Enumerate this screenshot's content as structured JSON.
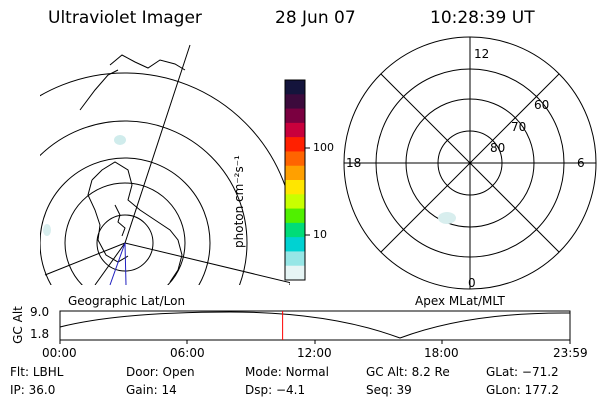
{
  "header": {
    "instrument": "Ultraviolet Imager",
    "date": "28 Jun 07",
    "time": "10:28:39 UT"
  },
  "colorbar": {
    "label": "photon cm⁻²s⁻¹",
    "tick_labels": [
      "100",
      "10"
    ],
    "colors": [
      "#14143c",
      "#3c0a3c",
      "#7a0040",
      "#c8003c",
      "#ff2000",
      "#ff6400",
      "#ffa000",
      "#ffe600",
      "#c8ff00",
      "#50f000",
      "#00dc78",
      "#00d2d2",
      "#96e6e6",
      "#e6f5f5"
    ]
  },
  "left_panel": {
    "label": "Geographic Lat/Lon"
  },
  "right_panel": {
    "label": "Apex MLat/MLT",
    "mlt_labels": [
      "12",
      "18",
      "6",
      "0"
    ],
    "lat_labels": [
      "60",
      "70",
      "80"
    ]
  },
  "timeline": {
    "ylabel": "GC Alt",
    "ytick_labels": [
      "9.0",
      "1.8"
    ],
    "time_labels": [
      "00:00",
      "06:00",
      "12:00",
      "18:00",
      "23:59"
    ],
    "current_time_fraction": 0.4365,
    "marker_color": "#ff0000"
  },
  "status": {
    "filter_label": "Flt:",
    "filter_value": "LBHL",
    "door_label": "Door:",
    "door_value": "Open",
    "mode_label": "Mode:",
    "mode_value": "Normal",
    "gcalt_label": "GC Alt:",
    "gcalt_value": "8.2 Re",
    "glat_label": "GLat:",
    "glat_value": "−71.2",
    "ip_label": "IP:",
    "ip_value": "36.0",
    "gain_label": "Gain:",
    "gain_value": "14",
    "dsp_label": "Dsp:",
    "dsp_value": "−4.1",
    "seq_label": "Seq:",
    "seq_value": "39",
    "glon_label": "GLon:",
    "glon_value": "177.2"
  }
}
